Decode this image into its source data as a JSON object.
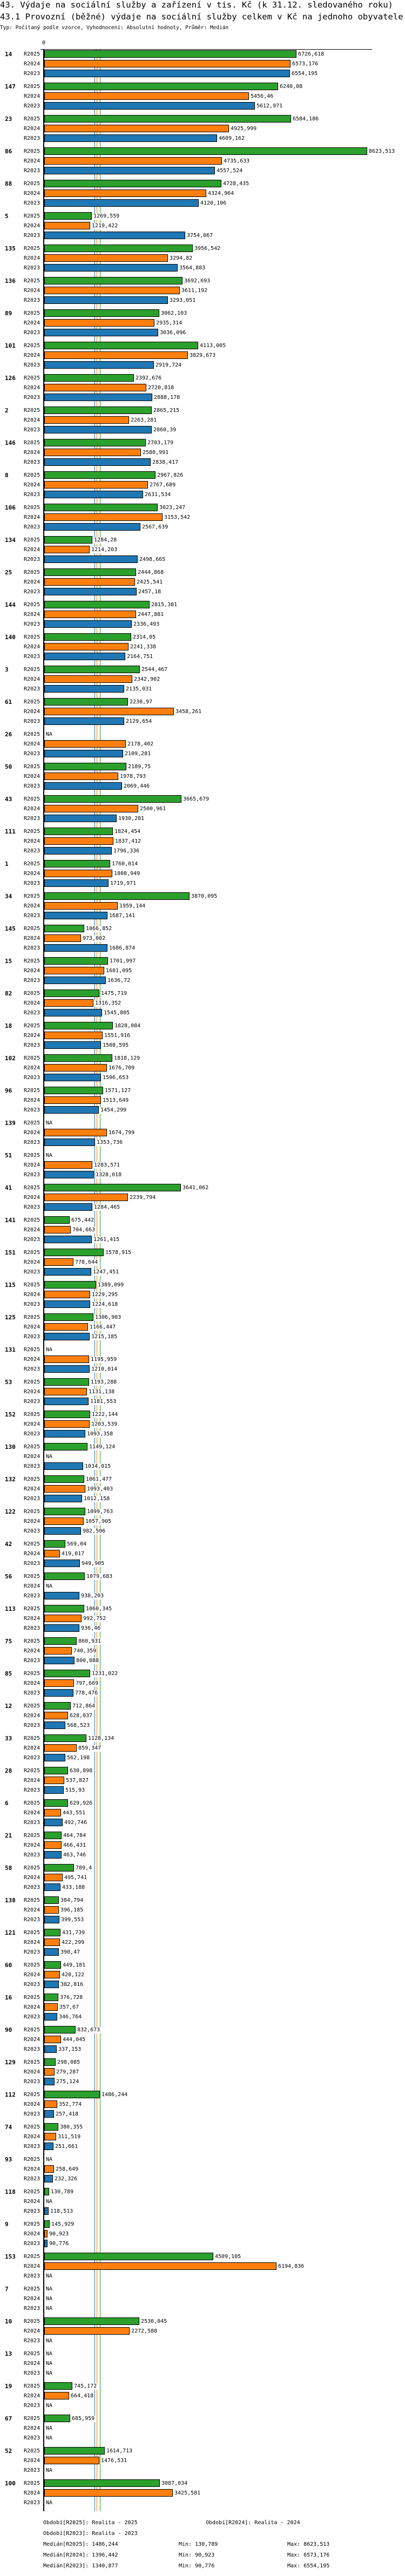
{
  "header": {
    "title": "43. Výdaje na sociální služby a zařízení v tis. Kč (k 31.12. sledovaného roku)",
    "subtitle_main": "43.1 Provozní (běžné) výdaje na sociální služby celkem v Kč na jednoho obyvatele",
    "meta": "Typ: Počítaný podle vzorce, Vyhodnocení: Absolutní hodnoty, Průměr: Medián"
  },
  "chart_data": {
    "type": "bar",
    "orientation": "horizontal",
    "title": "43.1 Provozní (běžné) výdaje na sociální služby celkem v Kč na jednoho obyvatele",
    "xlim": [
      0,
      8623.513
    ],
    "x_tick_labels": [
      "0"
    ],
    "series": [
      {
        "name": "R2025",
        "color": "#2ca02c"
      },
      {
        "name": "R2024",
        "color": "#ff7f0e"
      },
      {
        "name": "R2023",
        "color": "#1f77b4"
      }
    ],
    "na_label": "NA",
    "groups": [
      {
        "id": "14",
        "values": [
          6726.618,
          6573.176,
          6554.195
        ]
      },
      {
        "id": "147",
        "values": [
          6240.08,
          5456.46,
          5612.971
        ]
      },
      {
        "id": "23",
        "values": [
          6584.186,
          4925.999,
          4609.162
        ]
      },
      {
        "id": "86",
        "values": [
          8623.513,
          4735.633,
          4557.524
        ]
      },
      {
        "id": "88",
        "values": [
          4728.435,
          4324.964,
          4120.106
        ]
      },
      {
        "id": "5",
        "values": [
          1269.559,
          1219.422,
          3754.067
        ]
      },
      {
        "id": "135",
        "values": [
          3956.542,
          3294.82,
          3564.883
        ]
      },
      {
        "id": "136",
        "values": [
          3692.693,
          3611.192,
          3293.051
        ]
      },
      {
        "id": "89",
        "values": [
          3062.103,
          2935.314,
          3036.096
        ]
      },
      {
        "id": "101",
        "values": [
          4113.005,
          3829.673,
          2919.724
        ]
      },
      {
        "id": "126",
        "values": [
          2392.676,
          2720.818,
          2888.178
        ]
      },
      {
        "id": "2",
        "values": [
          2865.215,
          2263.281,
          2860.39
        ]
      },
      {
        "id": "146",
        "values": [
          2703.179,
          2580.991,
          2838.417
        ]
      },
      {
        "id": "8",
        "values": [
          2967.826,
          2767.689,
          2631.534
        ]
      },
      {
        "id": "106",
        "values": [
          3023.247,
          3153.542,
          2567.639
        ]
      },
      {
        "id": "134",
        "values": [
          1284.28,
          1214.203,
          2498.665
        ]
      },
      {
        "id": "25",
        "values": [
          2444.868,
          2425.541,
          2457.18
        ]
      },
      {
        "id": "144",
        "values": [
          2815.381,
          2447.881,
          2336.493
        ]
      },
      {
        "id": "140",
        "values": [
          2314.05,
          2241.338,
          2164.751
        ]
      },
      {
        "id": "3",
        "values": [
          2544.467,
          2342.902,
          2135.031
        ]
      },
      {
        "id": "61",
        "values": [
          2230.97,
          3458.261,
          2129.654
        ]
      },
      {
        "id": "26",
        "values": [
          null,
          2178.402,
          2109.281
        ]
      },
      {
        "id": "50",
        "values": [
          2189.75,
          1978.793,
          2069.446
        ]
      },
      {
        "id": "43",
        "values": [
          3665.679,
          2500.961,
          1930.281
        ]
      },
      {
        "id": "111",
        "values": [
          1824.454,
          1837.412,
          1796.336
        ]
      },
      {
        "id": "1",
        "values": [
          1760.014,
          1808.949,
          1719.971
        ]
      },
      {
        "id": "34",
        "values": [
          3870.095,
          1959.144,
          1687.141
        ]
      },
      {
        "id": "145",
        "values": [
          1066.852,
          973.002,
          1686.874
        ]
      },
      {
        "id": "15",
        "values": [
          1701.997,
          1601.095,
          1636.72
        ]
      },
      {
        "id": "82",
        "values": [
          1475.719,
          1316.352,
          1545.805
        ]
      },
      {
        "id": "18",
        "values": [
          1828.084,
          1551.916,
          1508.595
        ]
      },
      {
        "id": "102",
        "values": [
          1818.129,
          1676.709,
          1506.653
        ]
      },
      {
        "id": "96",
        "values": [
          1571.127,
          1513.649,
          1454.299
        ]
      },
      {
        "id": "139",
        "values": [
          null,
          1674.799,
          1353.736
        ]
      },
      {
        "id": "51",
        "values": [
          null,
          1283.571,
          1328.018
        ]
      },
      {
        "id": "41",
        "values": [
          3641.062,
          2239.794,
          1284.465
        ]
      },
      {
        "id": "141",
        "values": [
          675.442,
          704.663,
          1261.415
        ]
      },
      {
        "id": "151",
        "values": [
          1578.915,
          778.644,
          1247.451
        ]
      },
      {
        "id": "115",
        "values": [
          1389.099,
          1229.295,
          1224.618
        ]
      },
      {
        "id": "125",
        "values": [
          1306.903,
          1166.447,
          1215.185
        ]
      },
      {
        "id": "131",
        "values": [
          null,
          1195.959,
          1210.014
        ]
      },
      {
        "id": "53",
        "values": [
          1193.288,
          1131.138,
          1181.553
        ]
      },
      {
        "id": "152",
        "values": [
          1222.144,
          1203.539,
          1093.358
        ]
      },
      {
        "id": "130",
        "values": [
          1149.124,
          null,
          1034.015
        ]
      },
      {
        "id": "132",
        "values": [
          1061.477,
          1093.403,
          1012.158
        ]
      },
      {
        "id": "122",
        "values": [
          1099.763,
          1057.905,
          982.506
        ]
      },
      {
        "id": "42",
        "values": [
          569.04,
          419.017,
          949.905
        ]
      },
      {
        "id": "56",
        "values": [
          1079.683,
          null,
          938.203
        ]
      },
      {
        "id": "113",
        "values": [
          1060.345,
          992.752,
          936.46
        ]
      },
      {
        "id": "75",
        "values": [
          860.931,
          740.359,
          800.088
        ]
      },
      {
        "id": "85",
        "values": [
          1231.022,
          797.669,
          778.476
        ]
      },
      {
        "id": "12",
        "values": [
          712.864,
          628.037,
          568.523
        ]
      },
      {
        "id": "33",
        "values": [
          1128.134,
          859.347,
          562.198
        ]
      },
      {
        "id": "28",
        "values": [
          630.898,
          537.827,
          515.93
        ]
      },
      {
        "id": "6",
        "values": [
          629.926,
          443.551,
          492.746
        ]
      },
      {
        "id": "21",
        "values": [
          464.784,
          466.431,
          463.746
        ]
      },
      {
        "id": "58",
        "values": [
          789.4,
          495.741,
          433.188
        ]
      },
      {
        "id": "138",
        "values": [
          384.794,
          396.185,
          399.553
        ]
      },
      {
        "id": "121",
        "values": [
          431.739,
          422.299,
          390.47
        ]
      },
      {
        "id": "60",
        "values": [
          449.181,
          420.122,
          382.816
        ]
      },
      {
        "id": "16",
        "values": [
          376.728,
          357.67,
          346.764
        ]
      },
      {
        "id": "90",
        "values": [
          832.673,
          444.045,
          337.153
        ]
      },
      {
        "id": "129",
        "values": [
          298.085,
          279.287,
          275.124
        ]
      },
      {
        "id": "112",
        "values": [
          1486.244,
          352.774,
          257.418
        ]
      },
      {
        "id": "74",
        "values": [
          380.355,
          311.519,
          251.661
        ]
      },
      {
        "id": "93",
        "values": [
          null,
          258.649,
          232.326
        ]
      },
      {
        "id": "118",
        "values": [
          130.789,
          null,
          118.513
        ]
      },
      {
        "id": "9",
        "values": [
          145.929,
          90.923,
          90.776
        ]
      },
      {
        "id": "153",
        "values": [
          4509.105,
          6194.836,
          null
        ]
      },
      {
        "id": "7",
        "values": [
          null,
          null,
          null
        ]
      },
      {
        "id": "10",
        "values": [
          2530.045,
          2272.588,
          null
        ]
      },
      {
        "id": "13",
        "values": [
          null,
          null,
          null
        ]
      },
      {
        "id": "19",
        "values": [
          745.172,
          664.418,
          null
        ]
      },
      {
        "id": "67",
        "values": [
          685.959,
          null,
          null
        ]
      },
      {
        "id": "52",
        "values": [
          1614.713,
          1476.531,
          null
        ]
      },
      {
        "id": "100",
        "values": [
          3087.034,
          3425.581,
          null
        ]
      }
    ],
    "medians": [
      {
        "series": "R2025",
        "value": 1486.244,
        "color": "#2ca02c"
      },
      {
        "series": "R2024",
        "value": 1396.442,
        "color": "#ff7f0e"
      },
      {
        "series": "R2023",
        "value": 1340.877,
        "color": "#1f77b4"
      }
    ]
  },
  "legend": {
    "period_r2025": "Období[R2025]: Realita - 2025",
    "period_r2024": "Období[R2024]: Realita - 2024",
    "period_r2023": "Období[R2023]: Realita - 2023",
    "stats": [
      {
        "median": "Medián[R2025]: 1486,244",
        "min": "Min: 130,789",
        "max": "Max: 8623,513"
      },
      {
        "median": "Medián[R2024]: 1396,442",
        "min": "Min: 90,923",
        "max": "Max: 6573,176"
      },
      {
        "median": "Medián[R2023]: 1340,877",
        "min": "Min: 90,776",
        "max": "Max: 6554,195"
      }
    ]
  }
}
